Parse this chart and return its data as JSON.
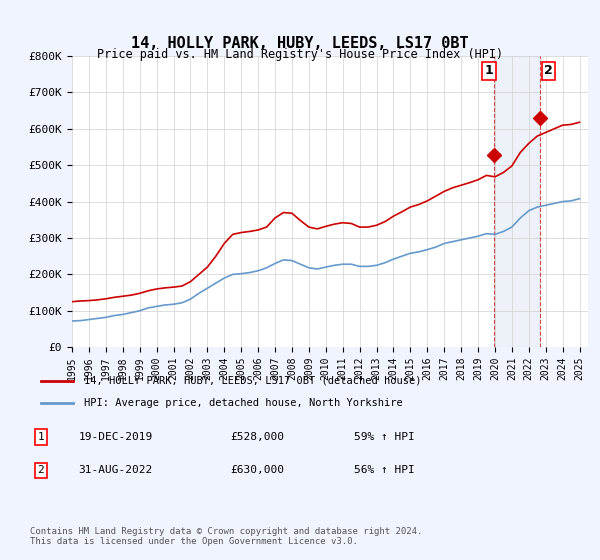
{
  "title": "14, HOLLY PARK, HUBY, LEEDS, LS17 0BT",
  "subtitle": "Price paid vs. HM Land Registry's House Price Index (HPI)",
  "ylabel": "",
  "xlabel": "",
  "ylim": [
    0,
    800000
  ],
  "yticks": [
    0,
    100000,
    200000,
    300000,
    400000,
    500000,
    600000,
    700000,
    800000
  ],
  "ytick_labels": [
    "£0",
    "£100K",
    "£200K",
    "£300K",
    "£400K",
    "£500K",
    "£600K",
    "£700K",
    "£800K"
  ],
  "background_color": "#f0f4ff",
  "plot_bg_color": "#ffffff",
  "grid_color": "#d0d0d0",
  "red_line_color": "#cc0000",
  "blue_line_color": "#6699cc",
  "sale1_year": 2019.97,
  "sale1_price": 528000,
  "sale2_year": 2022.67,
  "sale2_price": 630000,
  "legend_label_red": "14, HOLLY PARK, HUBY, LEEDS, LS17 0BT (detached house)",
  "legend_label_blue": "HPI: Average price, detached house, North Yorkshire",
  "table_row1": "19-DEC-2019    £528,000    59% ↑ HPI",
  "table_row2": "31-AUG-2022    £630,000    56% ↑ HPI",
  "footnote": "Contains HM Land Registry data © Crown copyright and database right 2024.\nThis data is licensed under the Open Government Licence v3.0.",
  "hpi_years": [
    1995.0,
    1995.5,
    1996.0,
    1996.5,
    1997.0,
    1997.5,
    1998.0,
    1998.5,
    1999.0,
    1999.5,
    2000.0,
    2000.5,
    2001.0,
    2001.5,
    2002.0,
    2002.5,
    2003.0,
    2003.5,
    2004.0,
    2004.5,
    2005.0,
    2005.5,
    2006.0,
    2006.5,
    2007.0,
    2007.5,
    2008.0,
    2008.5,
    2009.0,
    2009.5,
    2010.0,
    2010.5,
    2011.0,
    2011.5,
    2012.0,
    2012.5,
    2013.0,
    2013.5,
    2014.0,
    2014.5,
    2015.0,
    2015.5,
    2016.0,
    2016.5,
    2017.0,
    2017.5,
    2018.0,
    2018.5,
    2019.0,
    2019.5,
    2020.0,
    2020.5,
    2021.0,
    2021.5,
    2022.0,
    2022.5,
    2023.0,
    2023.5,
    2024.0,
    2024.5,
    2025.0
  ],
  "hpi_values": [
    72000,
    73000,
    76000,
    79000,
    82000,
    87000,
    90000,
    95000,
    100000,
    108000,
    112000,
    116000,
    118000,
    122000,
    132000,
    148000,
    162000,
    176000,
    190000,
    200000,
    202000,
    205000,
    210000,
    218000,
    230000,
    240000,
    238000,
    228000,
    218000,
    215000,
    220000,
    225000,
    228000,
    228000,
    222000,
    222000,
    225000,
    232000,
    242000,
    250000,
    258000,
    262000,
    268000,
    275000,
    285000,
    290000,
    295000,
    300000,
    305000,
    312000,
    310000,
    318000,
    330000,
    355000,
    375000,
    385000,
    390000,
    395000,
    400000,
    402000,
    408000
  ],
  "property_years": [
    1995.0,
    1995.5,
    1996.0,
    1996.5,
    1997.0,
    1997.5,
    1998.0,
    1998.5,
    1999.0,
    1999.5,
    2000.0,
    2000.5,
    2001.0,
    2001.5,
    2002.0,
    2002.5,
    2003.0,
    2003.5,
    2004.0,
    2004.5,
    2005.0,
    2005.5,
    2006.0,
    2006.5,
    2007.0,
    2007.5,
    2008.0,
    2008.5,
    2009.0,
    2009.5,
    2010.0,
    2010.5,
    2011.0,
    2011.5,
    2012.0,
    2012.5,
    2013.0,
    2013.5,
    2014.0,
    2014.5,
    2015.0,
    2015.5,
    2016.0,
    2016.5,
    2017.0,
    2017.5,
    2018.0,
    2018.5,
    2019.0,
    2019.5,
    2020.0,
    2020.5,
    2021.0,
    2021.5,
    2022.0,
    2022.5,
    2023.0,
    2023.5,
    2024.0,
    2024.5,
    2025.0
  ],
  "property_values": [
    125000,
    127000,
    128000,
    130000,
    133000,
    137000,
    140000,
    143000,
    148000,
    155000,
    160000,
    163000,
    165000,
    168000,
    180000,
    200000,
    220000,
    250000,
    285000,
    310000,
    315000,
    318000,
    322000,
    330000,
    355000,
    370000,
    368000,
    348000,
    330000,
    325000,
    332000,
    338000,
    342000,
    340000,
    330000,
    330000,
    335000,
    345000,
    360000,
    372000,
    385000,
    392000,
    402000,
    415000,
    428000,
    438000,
    445000,
    452000,
    460000,
    472000,
    468000,
    480000,
    498000,
    535000,
    560000,
    580000,
    590000,
    600000,
    610000,
    612000,
    618000
  ],
  "xlim": [
    1995,
    2025.5
  ],
  "xticks": [
    1995,
    1996,
    1997,
    1998,
    1999,
    2000,
    2001,
    2002,
    2003,
    2004,
    2005,
    2006,
    2007,
    2008,
    2009,
    2010,
    2011,
    2012,
    2013,
    2014,
    2015,
    2016,
    2017,
    2018,
    2019,
    2020,
    2021,
    2022,
    2023,
    2024,
    2025
  ]
}
